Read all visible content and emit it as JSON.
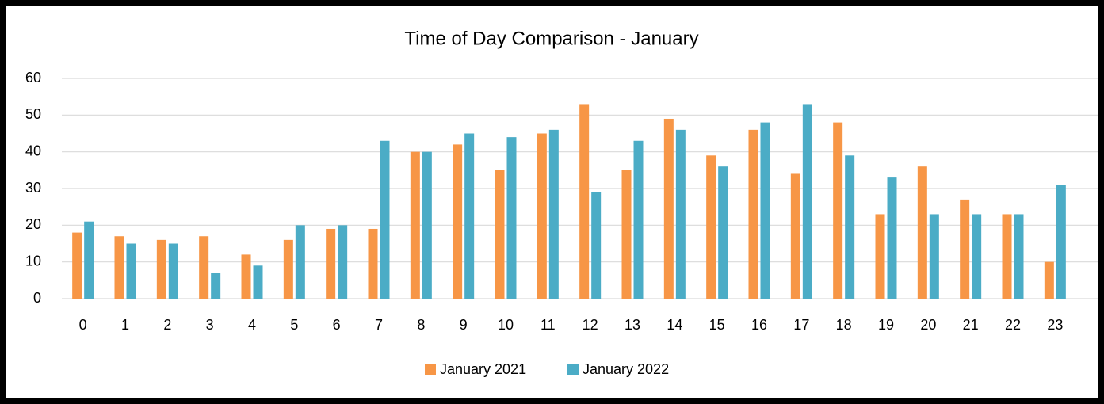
{
  "chart_data": {
    "type": "bar",
    "title": "Time of Day Comparison - January",
    "categories": [
      "0",
      "1",
      "2",
      "3",
      "4",
      "5",
      "6",
      "7",
      "8",
      "9",
      "10",
      "11",
      "12",
      "13",
      "14",
      "15",
      "16",
      "17",
      "18",
      "19",
      "20",
      "21",
      "22",
      "23"
    ],
    "series": [
      {
        "name": "January 2021",
        "color": "#f79646",
        "values": [
          18,
          17,
          16,
          17,
          12,
          16,
          19,
          19,
          40,
          42,
          35,
          45,
          53,
          35,
          49,
          39,
          46,
          34,
          48,
          23,
          36,
          27,
          23,
          10
        ]
      },
      {
        "name": "January 2022",
        "color": "#4bacc6",
        "values": [
          21,
          15,
          15,
          7,
          9,
          20,
          20,
          43,
          40,
          45,
          44,
          46,
          29,
          43,
          46,
          36,
          48,
          53,
          39,
          33,
          23,
          23,
          23,
          31
        ]
      }
    ],
    "ylim": [
      0,
      60
    ],
    "yticks": [
      0,
      10,
      20,
      30,
      40,
      50,
      60
    ],
    "grid": true,
    "legend": "bottom"
  }
}
